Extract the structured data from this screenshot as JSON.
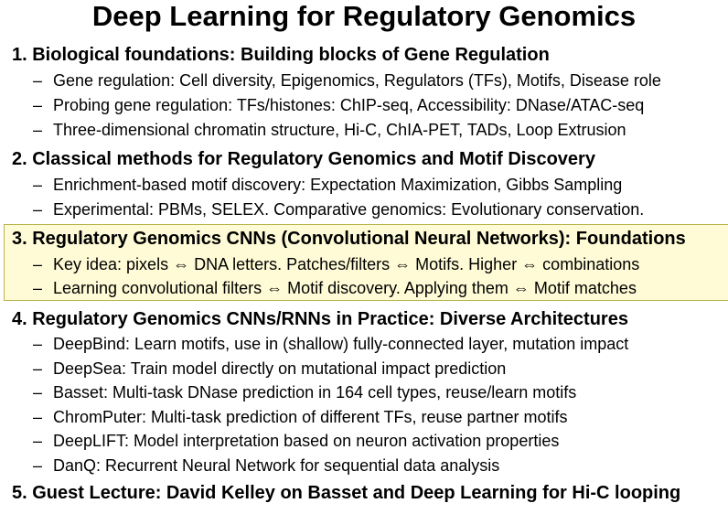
{
  "slide": {
    "title": "Deep Learning for Regulatory Genomics",
    "highlight_color": "#fffbd6",
    "sections": [
      {
        "heading": "1. Biological foundations: Building blocks of Gene Regulation",
        "bullets": [
          "Gene regulation: Cell diversity, Epigenomics, Regulators (TFs), Motifs, Disease role",
          "Probing gene regulation: TFs/histones: ChIP-seq, Accessibility: DNase/ATAC-seq",
          "Three-dimensional chromatin structure, Hi-C, ChIA-PET, TADs, Loop Extrusion"
        ]
      },
      {
        "heading": "2. Classical methods for Regulatory Genomics and Motif Discovery",
        "bullets": [
          "Enrichment-based motif discovery: Expectation Maximization, Gibbs Sampling",
          "Experimental: PBMs, SELEX. Comparative genomics: Evolutionary conservation."
        ]
      },
      {
        "heading": "3. Regulatory Genomics CNNs (Convolutional Neural Networks): Foundations",
        "bullets": [
          "Key idea: pixels ⇔ DNA letters. Patches/filters ⇔ Motifs. Higher ⇔ combinations",
          "Learning convolutional filters ⇔ Motif discovery. Applying them ⇔ Motif matches"
        ]
      },
      {
        "heading": "4. Regulatory Genomics CNNs/RNNs in Practice: Diverse Architectures",
        "bullets": [
          "DeepBind: Learn motifs, use in (shallow) fully-connected layer, mutation impact",
          "DeepSea: Train model directly on mutational impact prediction",
          "Basset: Multi-task DNase prediction in 164 cell types, reuse/learn motifs",
          "ChromPuter: Multi-task prediction of different TFs, reuse partner motifs",
          "DeepLIFT: Model interpretation based on neuron activation properties",
          "DanQ: Recurrent Neural Network for sequential data analysis"
        ]
      },
      {
        "heading": "5. Guest Lecture: David Kelley on Basset and Deep Learning for Hi-C looping",
        "bullets": []
      }
    ],
    "dash_glyph": "–"
  }
}
